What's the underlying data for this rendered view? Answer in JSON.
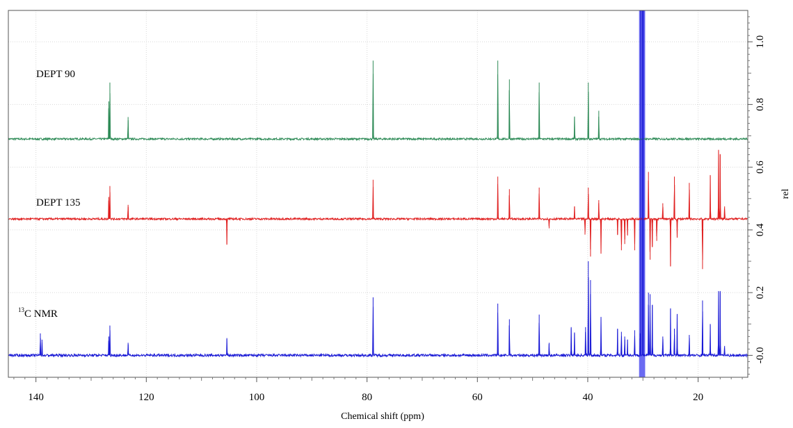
{
  "chart_data": {
    "type": "line",
    "xlabel": "Chemical shift (ppm)",
    "ylabel": "rel",
    "xlim": [
      145,
      11
    ],
    "ylim": [
      -0.07,
      1.1
    ],
    "grid": true,
    "x_ticks": [
      140,
      120,
      100,
      80,
      60,
      40,
      20
    ],
    "x_tick_labels": [
      "140",
      "120",
      "100",
      "80",
      "60",
      "40",
      "20"
    ],
    "y_ticks": [
      0.0,
      0.2,
      0.4,
      0.6,
      0.8,
      1.0
    ],
    "y_tick_labels": [
      "-0.0",
      "0.2",
      "0.4",
      "0.6",
      "0.8",
      "1.0"
    ],
    "series": [
      {
        "name": "DEPT 90",
        "label_text": "DEPT 90",
        "color": "#2e8b57",
        "baseline": 0.69,
        "noise": 0.003,
        "peaks": [
          {
            "x": 126.8,
            "h": 0.12
          },
          {
            "x": 126.6,
            "h": 0.18
          },
          {
            "x": 123.3,
            "h": 0.07
          },
          {
            "x": 78.9,
            "h": 0.25
          },
          {
            "x": 56.3,
            "h": 0.25
          },
          {
            "x": 54.2,
            "h": 0.19
          },
          {
            "x": 48.8,
            "h": 0.18
          },
          {
            "x": 42.4,
            "h": 0.07
          },
          {
            "x": 39.9,
            "h": 0.18
          },
          {
            "x": 38.0,
            "h": 0.09
          }
        ]
      },
      {
        "name": "DEPT 135",
        "label_text": "DEPT 135",
        "color": "#e02020",
        "baseline": 0.435,
        "noise": 0.003,
        "peaks": [
          {
            "x": 126.8,
            "h": 0.07
          },
          {
            "x": 126.6,
            "h": 0.105
          },
          {
            "x": 123.3,
            "h": 0.045
          },
          {
            "x": 105.4,
            "h": -0.08
          },
          {
            "x": 78.9,
            "h": 0.125
          },
          {
            "x": 56.3,
            "h": 0.135
          },
          {
            "x": 54.2,
            "h": 0.095
          },
          {
            "x": 48.8,
            "h": 0.1
          },
          {
            "x": 47.0,
            "h": -0.03
          },
          {
            "x": 42.4,
            "h": 0.04
          },
          {
            "x": 40.5,
            "h": -0.05
          },
          {
            "x": 39.9,
            "h": 0.1
          },
          {
            "x": 39.5,
            "h": -0.12
          },
          {
            "x": 38.0,
            "h": 0.06
          },
          {
            "x": 37.6,
            "h": -0.11
          },
          {
            "x": 34.6,
            "h": -0.05
          },
          {
            "x": 33.9,
            "h": -0.1
          },
          {
            "x": 33.3,
            "h": -0.08
          },
          {
            "x": 32.8,
            "h": -0.05
          },
          {
            "x": 31.5,
            "h": -0.1
          },
          {
            "x": 29.0,
            "h": 0.15
          },
          {
            "x": 28.7,
            "h": -0.13
          },
          {
            "x": 28.3,
            "h": -0.09
          },
          {
            "x": 27.5,
            "h": -0.07
          },
          {
            "x": 26.4,
            "h": 0.05
          },
          {
            "x": 25.0,
            "h": -0.15
          },
          {
            "x": 24.3,
            "h": 0.135
          },
          {
            "x": 23.8,
            "h": -0.06
          },
          {
            "x": 21.6,
            "h": 0.115
          },
          {
            "x": 19.2,
            "h": -0.16
          },
          {
            "x": 17.8,
            "h": 0.14
          },
          {
            "x": 16.3,
            "h": 0.22
          },
          {
            "x": 16.0,
            "h": 0.205
          },
          {
            "x": 15.2,
            "h": 0.04
          }
        ]
      },
      {
        "name": "13C NMR",
        "label_sup": "13",
        "label_text": "C NMR",
        "color": "#1a1ad6",
        "baseline": 0.0,
        "noise": 0.004,
        "peaks": [
          {
            "x": 139.2,
            "h": 0.07
          },
          {
            "x": 138.9,
            "h": 0.05
          },
          {
            "x": 126.8,
            "h": 0.06
          },
          {
            "x": 126.6,
            "h": 0.095
          },
          {
            "x": 123.3,
            "h": 0.04
          },
          {
            "x": 105.4,
            "h": 0.055
          },
          {
            "x": 78.9,
            "h": 0.185
          },
          {
            "x": 56.3,
            "h": 0.165
          },
          {
            "x": 54.2,
            "h": 0.115
          },
          {
            "x": 48.8,
            "h": 0.13
          },
          {
            "x": 47.0,
            "h": 0.04
          },
          {
            "x": 43.0,
            "h": 0.09
          },
          {
            "x": 42.4,
            "h": 0.07
          },
          {
            "x": 40.4,
            "h": 0.09
          },
          {
            "x": 39.9,
            "h": 0.3
          },
          {
            "x": 39.5,
            "h": 0.24
          },
          {
            "x": 37.6,
            "h": 0.12
          },
          {
            "x": 34.6,
            "h": 0.085
          },
          {
            "x": 33.9,
            "h": 0.075
          },
          {
            "x": 33.3,
            "h": 0.06
          },
          {
            "x": 32.8,
            "h": 0.05
          },
          {
            "x": 31.5,
            "h": 0.08
          },
          {
            "x": 30.5,
            "h": 0.07
          },
          {
            "x": 29.0,
            "h": 0.2
          },
          {
            "x": 28.7,
            "h": 0.195
          },
          {
            "x": 28.3,
            "h": 0.16
          },
          {
            "x": 26.4,
            "h": 0.06
          },
          {
            "x": 25.0,
            "h": 0.15
          },
          {
            "x": 24.3,
            "h": 0.085
          },
          {
            "x": 23.8,
            "h": 0.13
          },
          {
            "x": 21.6,
            "h": 0.065
          },
          {
            "x": 19.2,
            "h": 0.175
          },
          {
            "x": 17.8,
            "h": 0.1
          },
          {
            "x": 16.3,
            "h": 0.205
          },
          {
            "x": 16.0,
            "h": 0.205
          },
          {
            "x": 15.2,
            "h": 0.03
          }
        ]
      }
    ],
    "highlight_region": {
      "x_from": 30.7,
      "x_to": 29.6,
      "color": "#3a3aee"
    }
  }
}
